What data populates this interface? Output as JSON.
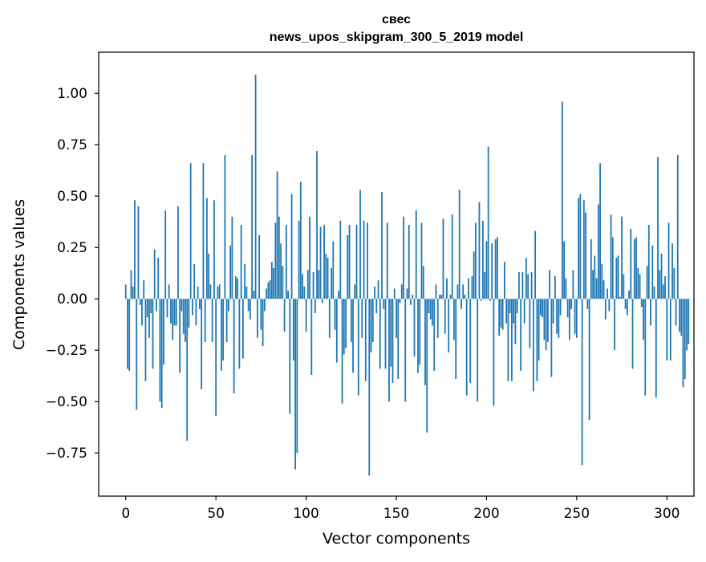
{
  "chart_data": {
    "type": "bar",
    "title": "свес",
    "subtitle": "news_upos_skipgram_300_5_2019 model",
    "xlabel": "Vector components",
    "ylabel": "Components values",
    "xlim": [
      -15,
      315
    ],
    "ylim": [
      -0.96,
      1.2
    ],
    "xticks": [
      0,
      50,
      100,
      150,
      200,
      250,
      300
    ],
    "xtick_labels": [
      "0",
      "50",
      "100",
      "150",
      "200",
      "250",
      "300"
    ],
    "yticks": [
      1.0,
      0.75,
      0.5,
      0.25,
      0.0,
      -0.25,
      -0.5,
      -0.75
    ],
    "ytick_labels": [
      "1.00",
      "0.75",
      "0.50",
      "0.25",
      "0.00",
      "−0.25",
      "−0.50",
      "−0.75"
    ],
    "grid": false,
    "legend": "none",
    "bar_color": "#1f77b4",
    "series": [
      {
        "values": [
          0.07,
          -0.34,
          -0.35,
          0.14,
          0.06,
          0.48,
          -0.54,
          0.45,
          -0.03,
          -0.13,
          0.09,
          -0.4,
          -0.09,
          -0.19,
          -0.07,
          -0.34,
          0.24,
          -0.06,
          0.2,
          -0.5,
          -0.53,
          -0.32,
          0.43,
          -0.09,
          0.07,
          -0.12,
          -0.2,
          -0.13,
          -0.13,
          0.45,
          -0.36,
          -0.06,
          -0.17,
          -0.21,
          -0.69,
          -0.14,
          0.66,
          -0.08,
          0.17,
          -0.13,
          0.06,
          -0.05,
          -0.44,
          0.66,
          -0.21,
          0.49,
          0.22,
          0.07,
          -0.21,
          0.48,
          -0.57,
          0.06,
          0.07,
          -0.35,
          -0.3,
          0.7,
          -0.21,
          -0.06,
          0.26,
          0.4,
          -0.46,
          0.11,
          0.1,
          -0.34,
          0.36,
          -0.29,
          0.17,
          0.06,
          -0.06,
          -0.1,
          0.7,
          0.04,
          1.09,
          -0.19,
          0.31,
          -0.15,
          -0.23,
          -0.06,
          0.05,
          0.08,
          0.09,
          0.18,
          0.15,
          0.37,
          0.62,
          0.4,
          0.27,
          0.16,
          -0.16,
          0.36,
          0.04,
          -0.56,
          0.51,
          -0.3,
          -0.83,
          -0.75,
          0.38,
          0.57,
          0.12,
          0.06,
          -0.16,
          0.14,
          0.4,
          -0.37,
          0.13,
          -0.07,
          0.72,
          0.14,
          0.35,
          -0.02,
          0.36,
          0.22,
          0.2,
          -0.19,
          0.15,
          0.28,
          -0.15,
          -0.31,
          0.04,
          0.38,
          -0.51,
          -0.27,
          -0.24,
          0.31,
          0.36,
          -0.21,
          -0.36,
          0.07,
          0.36,
          -0.47,
          0.53,
          -0.19,
          0.38,
          -0.4,
          0.37,
          -0.86,
          -0.26,
          -0.21,
          0.06,
          -0.07,
          0.09,
          -0.34,
          0.52,
          -0.05,
          -0.34,
          0.37,
          -0.5,
          -0.33,
          -0.41,
          0.05,
          -0.19,
          -0.39,
          -0.02,
          0.07,
          0.4,
          -0.5,
          0.05,
          0.36,
          -0.03,
          0.02,
          -0.28,
          0.43,
          -0.36,
          -0.32,
          0.37,
          0.16,
          -0.42,
          -0.65,
          -0.07,
          -0.1,
          -0.13,
          -0.35,
          0.07,
          -0.19,
          0.02,
          0.02,
          0.39,
          -0.17,
          0.1,
          -0.26,
          0.02,
          0.41,
          -0.2,
          -0.39,
          0.07,
          0.53,
          -0.05,
          0.07,
          0.02,
          -0.47,
          0.1,
          -0.41,
          0.11,
          0.23,
          0.37,
          -0.5,
          0.47,
          -0.01,
          0.38,
          0.13,
          0.28,
          0.74,
          -0.01,
          0.27,
          -0.52,
          0.29,
          0.3,
          -0.18,
          -0.14,
          -0.15,
          0.18,
          -0.12,
          -0.4,
          -0.07,
          -0.4,
          -0.12,
          -0.22,
          -0.07,
          0.13,
          -0.35,
          0.13,
          -0.12,
          0.2,
          0.12,
          -0.24,
          0.13,
          -0.45,
          0.33,
          -0.4,
          -0.3,
          -0.08,
          -0.09,
          -0.2,
          -0.25,
          -0.21,
          0.14,
          -0.38,
          -0.12,
          0.11,
          -0.17,
          -0.19,
          -0.08,
          0.96,
          0.28,
          0.1,
          -0.09,
          -0.2,
          -0.05,
          0.14,
          -0.17,
          -0.19,
          0.49,
          0.51,
          -0.81,
          0.48,
          0.42,
          -0.05,
          -0.59,
          0.29,
          0.14,
          0.21,
          0.1,
          0.46,
          0.66,
          0.17,
          0.09,
          -0.1,
          0.05,
          -0.06,
          0.41,
          0.3,
          -0.25,
          0.2,
          0.21,
          0.01,
          0.4,
          0.12,
          -0.05,
          -0.08,
          0.04,
          0.34,
          -0.34,
          0.29,
          0.3,
          0.15,
          0.12,
          -0.04,
          -0.2,
          -0.47,
          0.16,
          0.36,
          -0.13,
          0.26,
          0.06,
          -0.48,
          0.69,
          0.14,
          0.22,
          0.07,
          0.11,
          -0.3,
          0.37,
          -0.3,
          0.27,
          0.15,
          -0.13,
          0.7,
          -0.16,
          -0.18,
          -0.43,
          -0.39,
          -0.25,
          -0.22
        ]
      }
    ]
  }
}
